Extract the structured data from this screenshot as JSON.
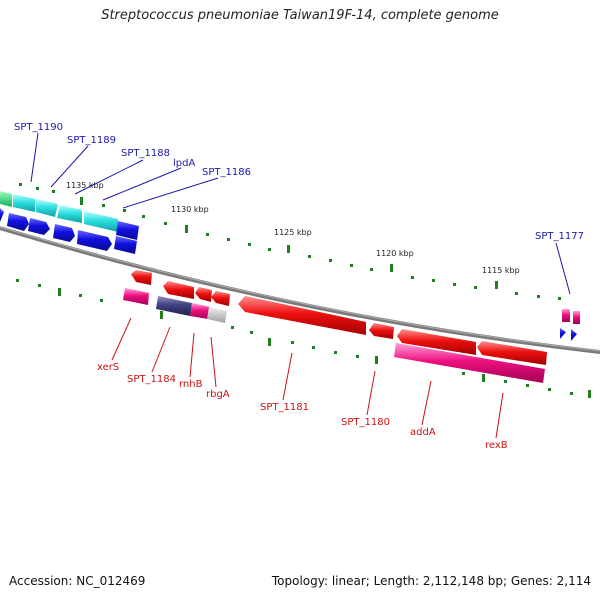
{
  "title": "Streptococcus pneumoniae Taiwan19F-14, complete genome",
  "footer": {
    "accession": "Accession: NC_012469",
    "topology": "Topology: linear; Length: 2,112,148 bp; Genes: 2,114"
  },
  "scale_labels": [
    "1135 kbp",
    "1130 kbp",
    "1125 kbp",
    "1120 kbp",
    "1115 kbp"
  ],
  "genes_plus": [
    "SPT_1190",
    "SPT_1189",
    "SPT_1188",
    "lpdA",
    "SPT_1186",
    "SPT_1177"
  ],
  "genes_minus": [
    "xerS",
    "SPT_1184",
    "rnhB",
    "rbgA",
    "SPT_1181",
    "SPT_1180",
    "addA",
    "rexB"
  ],
  "colors": {
    "backbone": "#808080",
    "plus_cds": "#1010e0",
    "plus_cds_highlight": "#30e0e0",
    "minus_cds": "#ee1010",
    "minus_cds_highlight": "#ee1080",
    "tick": "#208020"
  }
}
